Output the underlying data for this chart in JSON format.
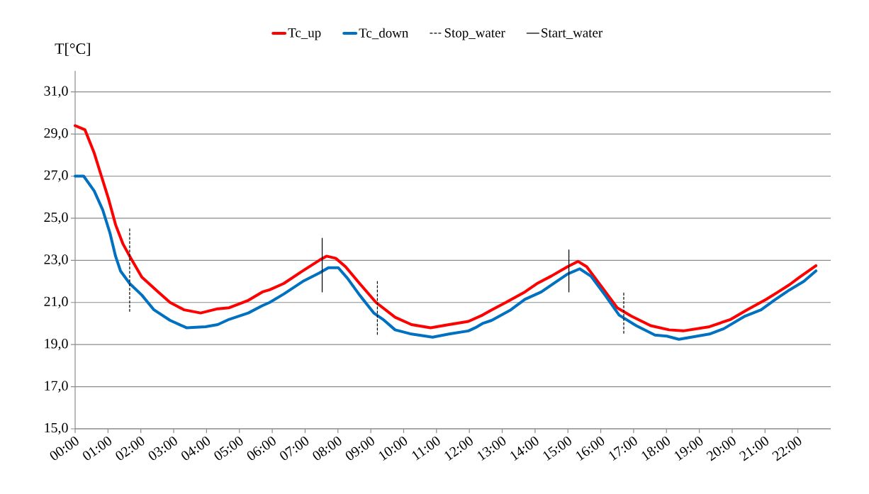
{
  "chart_data": {
    "type": "line",
    "ylabel": "T[°C]",
    "xlim": [
      0,
      23
    ],
    "ylim": [
      15,
      32
    ],
    "xticks": [
      {
        "value": 0,
        "label": "00:00"
      },
      {
        "value": 1,
        "label": "01:00"
      },
      {
        "value": 2,
        "label": "02:00"
      },
      {
        "value": 3,
        "label": "03:00"
      },
      {
        "value": 4,
        "label": "04:00"
      },
      {
        "value": 5,
        "label": "05:00"
      },
      {
        "value": 6,
        "label": "06:00"
      },
      {
        "value": 7,
        "label": "07:00"
      },
      {
        "value": 8,
        "label": "08:00"
      },
      {
        "value": 9,
        "label": "09:00"
      },
      {
        "value": 10,
        "label": "10:00"
      },
      {
        "value": 11,
        "label": "11:00"
      },
      {
        "value": 12,
        "label": "12:00"
      },
      {
        "value": 13,
        "label": "13:00"
      },
      {
        "value": 14,
        "label": "14:00"
      },
      {
        "value": 15,
        "label": "15:00"
      },
      {
        "value": 16,
        "label": "16:00"
      },
      {
        "value": 17,
        "label": "17:00"
      },
      {
        "value": 18,
        "label": "18:00"
      },
      {
        "value": 19,
        "label": "19:00"
      },
      {
        "value": 20,
        "label": "20:00"
      },
      {
        "value": 21,
        "label": "21:00"
      },
      {
        "value": 22,
        "label": "22:00"
      }
    ],
    "yticks": [
      {
        "value": 15,
        "label": "15,0"
      },
      {
        "value": 17,
        "label": "17,0"
      },
      {
        "value": 19,
        "label": "19,0"
      },
      {
        "value": 21,
        "label": "21,0"
      },
      {
        "value": 23,
        "label": "23,0"
      },
      {
        "value": 25,
        "label": "25,0"
      },
      {
        "value": 27,
        "label": "27,0"
      },
      {
        "value": 29,
        "label": "29,0"
      },
      {
        "value": 31,
        "label": "31,0"
      }
    ],
    "grid": "y",
    "legend": "top",
    "marker": "none",
    "series": [
      {
        "name": "Tc_up",
        "color": "#ff0000",
        "line_style": "solid",
        "x": [
          0,
          0.3,
          0.58,
          0.8,
          1.02,
          1.23,
          1.45,
          1.66,
          2.03,
          2.53,
          2.89,
          3.32,
          3.82,
          4.34,
          4.69,
          5.27,
          5.7,
          5.92,
          6.35,
          6.93,
          7.43,
          7.65,
          7.93,
          8.23,
          8.66,
          9.16,
          9.74,
          10.24,
          10.82,
          11.38,
          11.97,
          12.4,
          12.68,
          13.11,
          13.69,
          14.06,
          14.49,
          14.99,
          15.31,
          15.57,
          16.0,
          16.5,
          16.93,
          17.52,
          18.08,
          18.51,
          19.31,
          19.96,
          20.45,
          21.04,
          21.4,
          21.75,
          22.05,
          22.55
        ],
        "values": [
          29.4,
          29.2,
          28.1,
          27.0,
          25.9,
          24.7,
          23.8,
          23.2,
          22.2,
          21.5,
          21.0,
          20.65,
          20.5,
          20.7,
          20.75,
          21.1,
          21.5,
          21.6,
          21.9,
          22.5,
          23.0,
          23.2,
          23.1,
          22.7,
          21.9,
          21.0,
          20.3,
          19.95,
          19.8,
          19.95,
          20.1,
          20.4,
          20.65,
          21.0,
          21.5,
          21.9,
          22.25,
          22.7,
          22.95,
          22.7,
          21.8,
          20.75,
          20.35,
          19.9,
          19.7,
          19.65,
          19.85,
          20.2,
          20.65,
          21.15,
          21.5,
          21.85,
          22.2,
          22.75
        ]
      },
      {
        "name": "Tc_down",
        "color": "#0070c0",
        "line_style": "solid",
        "x": [
          0,
          0.26,
          0.58,
          0.84,
          1.06,
          1.23,
          1.38,
          1.66,
          2.03,
          2.4,
          2.89,
          3.39,
          3.97,
          4.34,
          4.69,
          5.27,
          5.7,
          5.92,
          6.35,
          6.93,
          7.43,
          7.71,
          8.01,
          8.29,
          8.66,
          9.09,
          9.37,
          9.74,
          10.24,
          10.88,
          11.38,
          11.97,
          12.18,
          12.4,
          12.68,
          13.26,
          13.69,
          14.19,
          14.56,
          14.99,
          15.36,
          15.7,
          16.13,
          16.56,
          17.08,
          17.65,
          18.01,
          18.38,
          19.31,
          19.74,
          20.39,
          20.88,
          21.32,
          21.75,
          22.18,
          22.55
        ],
        "values": [
          27.0,
          27.0,
          26.3,
          25.4,
          24.3,
          23.2,
          22.5,
          21.9,
          21.35,
          20.65,
          20.15,
          19.8,
          19.85,
          19.95,
          20.2,
          20.5,
          20.85,
          21.0,
          21.4,
          22.0,
          22.4,
          22.65,
          22.65,
          22.15,
          21.35,
          20.5,
          20.2,
          19.7,
          19.5,
          19.35,
          19.5,
          19.65,
          19.8,
          20.0,
          20.15,
          20.65,
          21.15,
          21.5,
          21.9,
          22.35,
          22.6,
          22.25,
          21.35,
          20.4,
          19.9,
          19.45,
          19.4,
          19.25,
          19.5,
          19.75,
          20.35,
          20.65,
          21.15,
          21.6,
          22.0,
          22.5
        ]
      },
      {
        "name": "Stop_water",
        "color": "#000000",
        "line_style": "dashed",
        "x": [
          1.66,
          1.66,
          5.0,
          9.2,
          9.2,
          13.0,
          16.7,
          16.7
        ],
        "values": [
          24.5,
          20.5,
          null,
          22.0,
          19.45,
          null,
          21.45,
          19.45
        ]
      },
      {
        "name": "Start_water",
        "color": "#000000",
        "line_style": "solid",
        "x": [
          7.52,
          7.52,
          11.0,
          15.03,
          15.03
        ],
        "values": [
          24.05,
          21.5,
          null,
          23.5,
          21.5
        ]
      }
    ]
  }
}
